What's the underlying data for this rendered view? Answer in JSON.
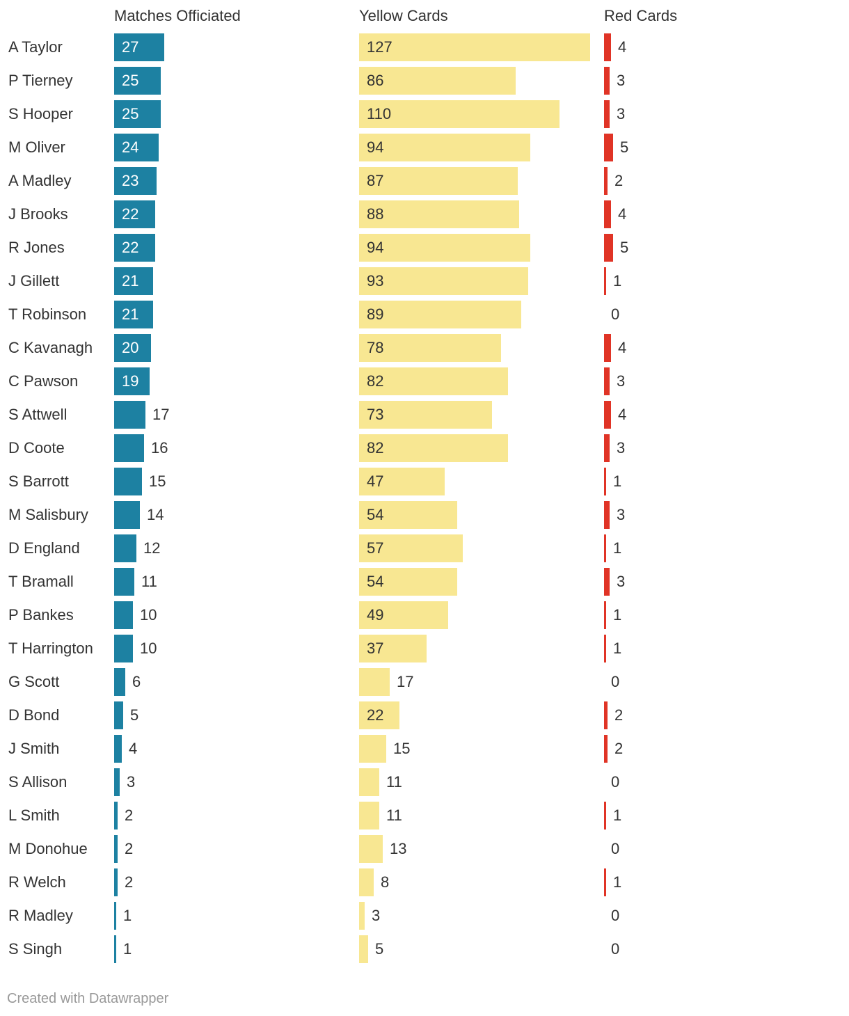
{
  "chart_data": {
    "type": "bar",
    "title": "",
    "categories": [
      "A Taylor",
      "P Tierney",
      "S Hooper",
      "M Oliver",
      "A Madley",
      "J Brooks",
      "R Jones",
      "J Gillett",
      "T Robinson",
      "C Kavanagh",
      "C Pawson",
      "S Attwell",
      "D Coote",
      "S Barrott",
      "M Salisbury",
      "D England",
      "T Bramall",
      "P Bankes",
      "T Harrington",
      "G Scott",
      "D Bond",
      "J Smith",
      "S Allison",
      "L Smith",
      "M Donohue",
      "R Welch",
      "R Madley",
      "S Singh"
    ],
    "series": [
      {
        "name": "Matches Officiated",
        "color": "#1d81a2",
        "values": [
          27,
          25,
          25,
          24,
          23,
          22,
          22,
          21,
          21,
          20,
          19,
          17,
          16,
          15,
          14,
          12,
          11,
          10,
          10,
          6,
          5,
          4,
          3,
          2,
          2,
          2,
          1,
          1
        ]
      },
      {
        "name": "Yellow Cards",
        "color": "#f8e792",
        "values": [
          127,
          86,
          110,
          94,
          87,
          88,
          94,
          93,
          89,
          78,
          82,
          73,
          82,
          47,
          54,
          57,
          54,
          49,
          37,
          17,
          22,
          15,
          11,
          11,
          13,
          8,
          3,
          5
        ]
      },
      {
        "name": "Red Cards",
        "color": "#e03426",
        "values": [
          4,
          3,
          3,
          5,
          2,
          4,
          5,
          1,
          0,
          4,
          3,
          4,
          3,
          1,
          3,
          1,
          3,
          1,
          1,
          0,
          2,
          2,
          0,
          1,
          0,
          1,
          0,
          0
        ]
      }
    ]
  },
  "footer": "Created with Datawrapper"
}
